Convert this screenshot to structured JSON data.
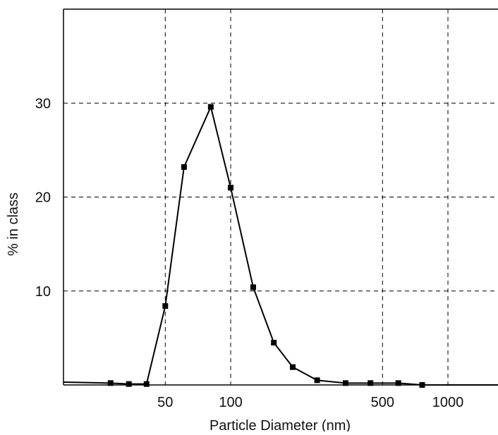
{
  "chart_data": {
    "type": "line",
    "title": "",
    "xlabel": "Particle Diameter (nm)",
    "ylabel": "% in class",
    "x_scale": "log",
    "xlim": [
      17,
      1700
    ],
    "ylim": [
      0,
      40
    ],
    "grid": true,
    "x_ticks": [
      {
        "value": 50,
        "label": "50"
      },
      {
        "value": 100,
        "label": "100"
      },
      {
        "value": 500,
        "label": "500"
      },
      {
        "value": 1000,
        "label": "1000"
      }
    ],
    "y_ticks": [
      {
        "value": 10,
        "label": "10"
      },
      {
        "value": 20,
        "label": "20"
      },
      {
        "value": 30,
        "label": "30"
      }
    ],
    "series": [
      {
        "x": [
          28,
          34,
          41,
          50,
          61,
          81,
          100,
          127,
          158,
          193,
          250,
          338,
          440,
          591,
          761
        ],
        "y": [
          0.2,
          0.1,
          0.1,
          8.4,
          23.2,
          29.6,
          21.0,
          10.4,
          4.5,
          1.9,
          0.5,
          0.2,
          0.2,
          0.2,
          0.0
        ]
      }
    ],
    "line_start": {
      "x": 17,
      "y": 0.3
    },
    "line_end": {
      "x": 1700,
      "y": 0.0
    },
    "colors": {
      "line": "#000000",
      "marker": "#000000",
      "grid": "#000000",
      "axis": "#000000"
    }
  }
}
